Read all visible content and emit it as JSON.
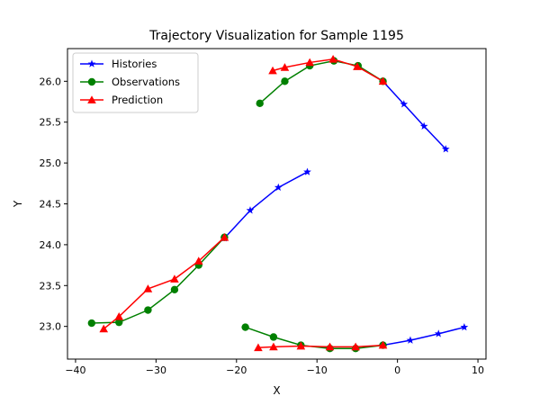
{
  "chart_data": {
    "type": "line",
    "title": "Trajectory Visualization for Sample 1195",
    "xlabel": "X",
    "ylabel": "Y",
    "xlim": [
      -41,
      11
    ],
    "ylim": [
      22.6,
      26.4
    ],
    "xticks": [
      -40,
      -30,
      -20,
      -10,
      0,
      10
    ],
    "yticks": [
      23.0,
      23.5,
      24.0,
      24.5,
      25.0,
      25.5,
      26.0
    ],
    "xtick_labels": [
      "−40",
      "−30",
      "−20",
      "−10",
      "0",
      "10"
    ],
    "ytick_labels": [
      "23.0",
      "23.5",
      "24.0",
      "24.5",
      "25.0",
      "25.5",
      "26.0"
    ],
    "grid": false,
    "legend_position": "upper-left",
    "legend": [
      "Histories",
      "Observations",
      "Prediction"
    ],
    "series": [
      {
        "name": "Histories",
        "color": "#0000ff",
        "marker": "star",
        "segments": [
          {
            "x": [
              -1.8,
              0.8,
              3.3,
              6.0
            ],
            "y": [
              26.0,
              25.72,
              25.45,
              25.17
            ]
          },
          {
            "x": [
              -21.5,
              -18.3,
              -14.8,
              -11.2
            ],
            "y": [
              24.08,
              24.42,
              24.7,
              24.89
            ]
          },
          {
            "x": [
              -1.8,
              1.6,
              5.1,
              8.3
            ],
            "y": [
              22.77,
              22.83,
              22.91,
              22.99
            ]
          }
        ]
      },
      {
        "name": "Observations",
        "color": "#008000",
        "marker": "circle",
        "segments": [
          {
            "x": [
              -17.1,
              -14.0,
              -10.9,
              -7.9,
              -4.9,
              -1.8
            ],
            "y": [
              25.73,
              26.0,
              26.19,
              26.25,
              26.19,
              26.0
            ]
          },
          {
            "x": [
              -38.0,
              -34.6,
              -31.0,
              -27.7,
              -24.7,
              -21.5
            ],
            "y": [
              23.04,
              23.05,
              23.2,
              23.45,
              23.75,
              24.09
            ]
          },
          {
            "x": [
              -18.9,
              -15.4,
              -12.0,
              -8.4,
              -5.2,
              -1.8
            ],
            "y": [
              22.99,
              22.87,
              22.77,
              22.73,
              22.73,
              22.77
            ]
          }
        ]
      },
      {
        "name": "Prediction",
        "color": "#ff0000",
        "marker": "triangle",
        "segments": [
          {
            "x": [
              -15.5,
              -14.0,
              -10.9,
              -8.0,
              -5.0,
              -1.8
            ],
            "y": [
              26.13,
              26.17,
              26.23,
              26.27,
              26.18,
              26.0
            ]
          },
          {
            "x": [
              -36.5,
              -34.6,
              -31.0,
              -27.7,
              -24.7,
              -21.5
            ],
            "y": [
              22.97,
              23.12,
              23.46,
              23.58,
              23.8,
              24.09
            ]
          },
          {
            "x": [
              -17.3,
              -15.4,
              -12.0,
              -8.4,
              -5.2,
              -1.8
            ],
            "y": [
              22.74,
              22.75,
              22.76,
              22.75,
              22.75,
              22.77
            ]
          }
        ]
      }
    ]
  }
}
